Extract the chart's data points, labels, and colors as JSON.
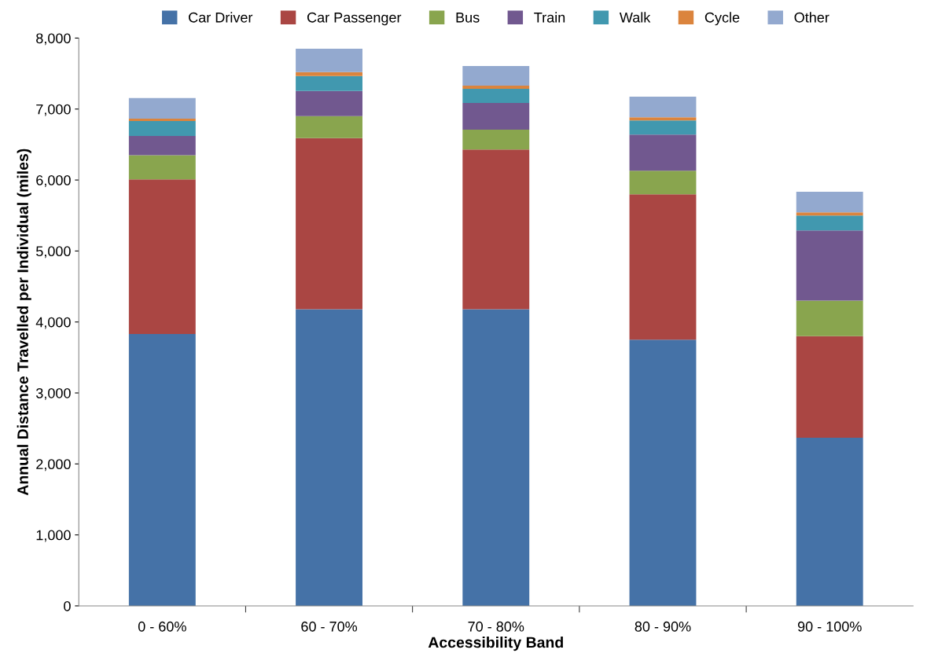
{
  "chart_data": {
    "type": "bar",
    "stacked": true,
    "xlabel": "Accessibility Band",
    "ylabel": "Annual Distance Travelled per Individual (miles)",
    "categories": [
      "0 - 60%",
      "60 - 70%",
      "70 - 80%",
      "80 - 90%",
      "90 - 100%"
    ],
    "series": [
      {
        "name": "Car Driver",
        "color": "#4572a7",
        "values": [
          3830,
          4180,
          4180,
          3750,
          2370
        ]
      },
      {
        "name": "Car Passenger",
        "color": "#aa4643",
        "values": [
          2180,
          2410,
          2250,
          2050,
          1430
        ]
      },
      {
        "name": "Bus",
        "color": "#89a54e",
        "values": [
          340,
          310,
          280,
          330,
          500
        ]
      },
      {
        "name": "Train",
        "color": "#71588f",
        "values": [
          270,
          355,
          375,
          510,
          990
        ]
      },
      {
        "name": "Walk",
        "color": "#4198af",
        "values": [
          210,
          210,
          200,
          200,
          210
        ]
      },
      {
        "name": "Cycle",
        "color": "#db843d",
        "values": [
          35,
          55,
          45,
          45,
          45
        ]
      },
      {
        "name": "Other",
        "color": "#93a9cf",
        "values": [
          290,
          330,
          275,
          290,
          290
        ]
      }
    ],
    "ylim": [
      0,
      8000
    ],
    "yticks": [
      {
        "value": 0,
        "label": "0"
      },
      {
        "value": 1000,
        "label": "1,000"
      },
      {
        "value": 2000,
        "label": "2,000"
      },
      {
        "value": 3000,
        "label": "3,000"
      },
      {
        "value": 4000,
        "label": "4,000"
      },
      {
        "value": 5000,
        "label": "5,000"
      },
      {
        "value": 6000,
        "label": "6,000"
      },
      {
        "value": 7000,
        "label": "7,000"
      },
      {
        "value": 8000,
        "label": "8,000"
      }
    ],
    "grid": false,
    "legend": "top"
  }
}
